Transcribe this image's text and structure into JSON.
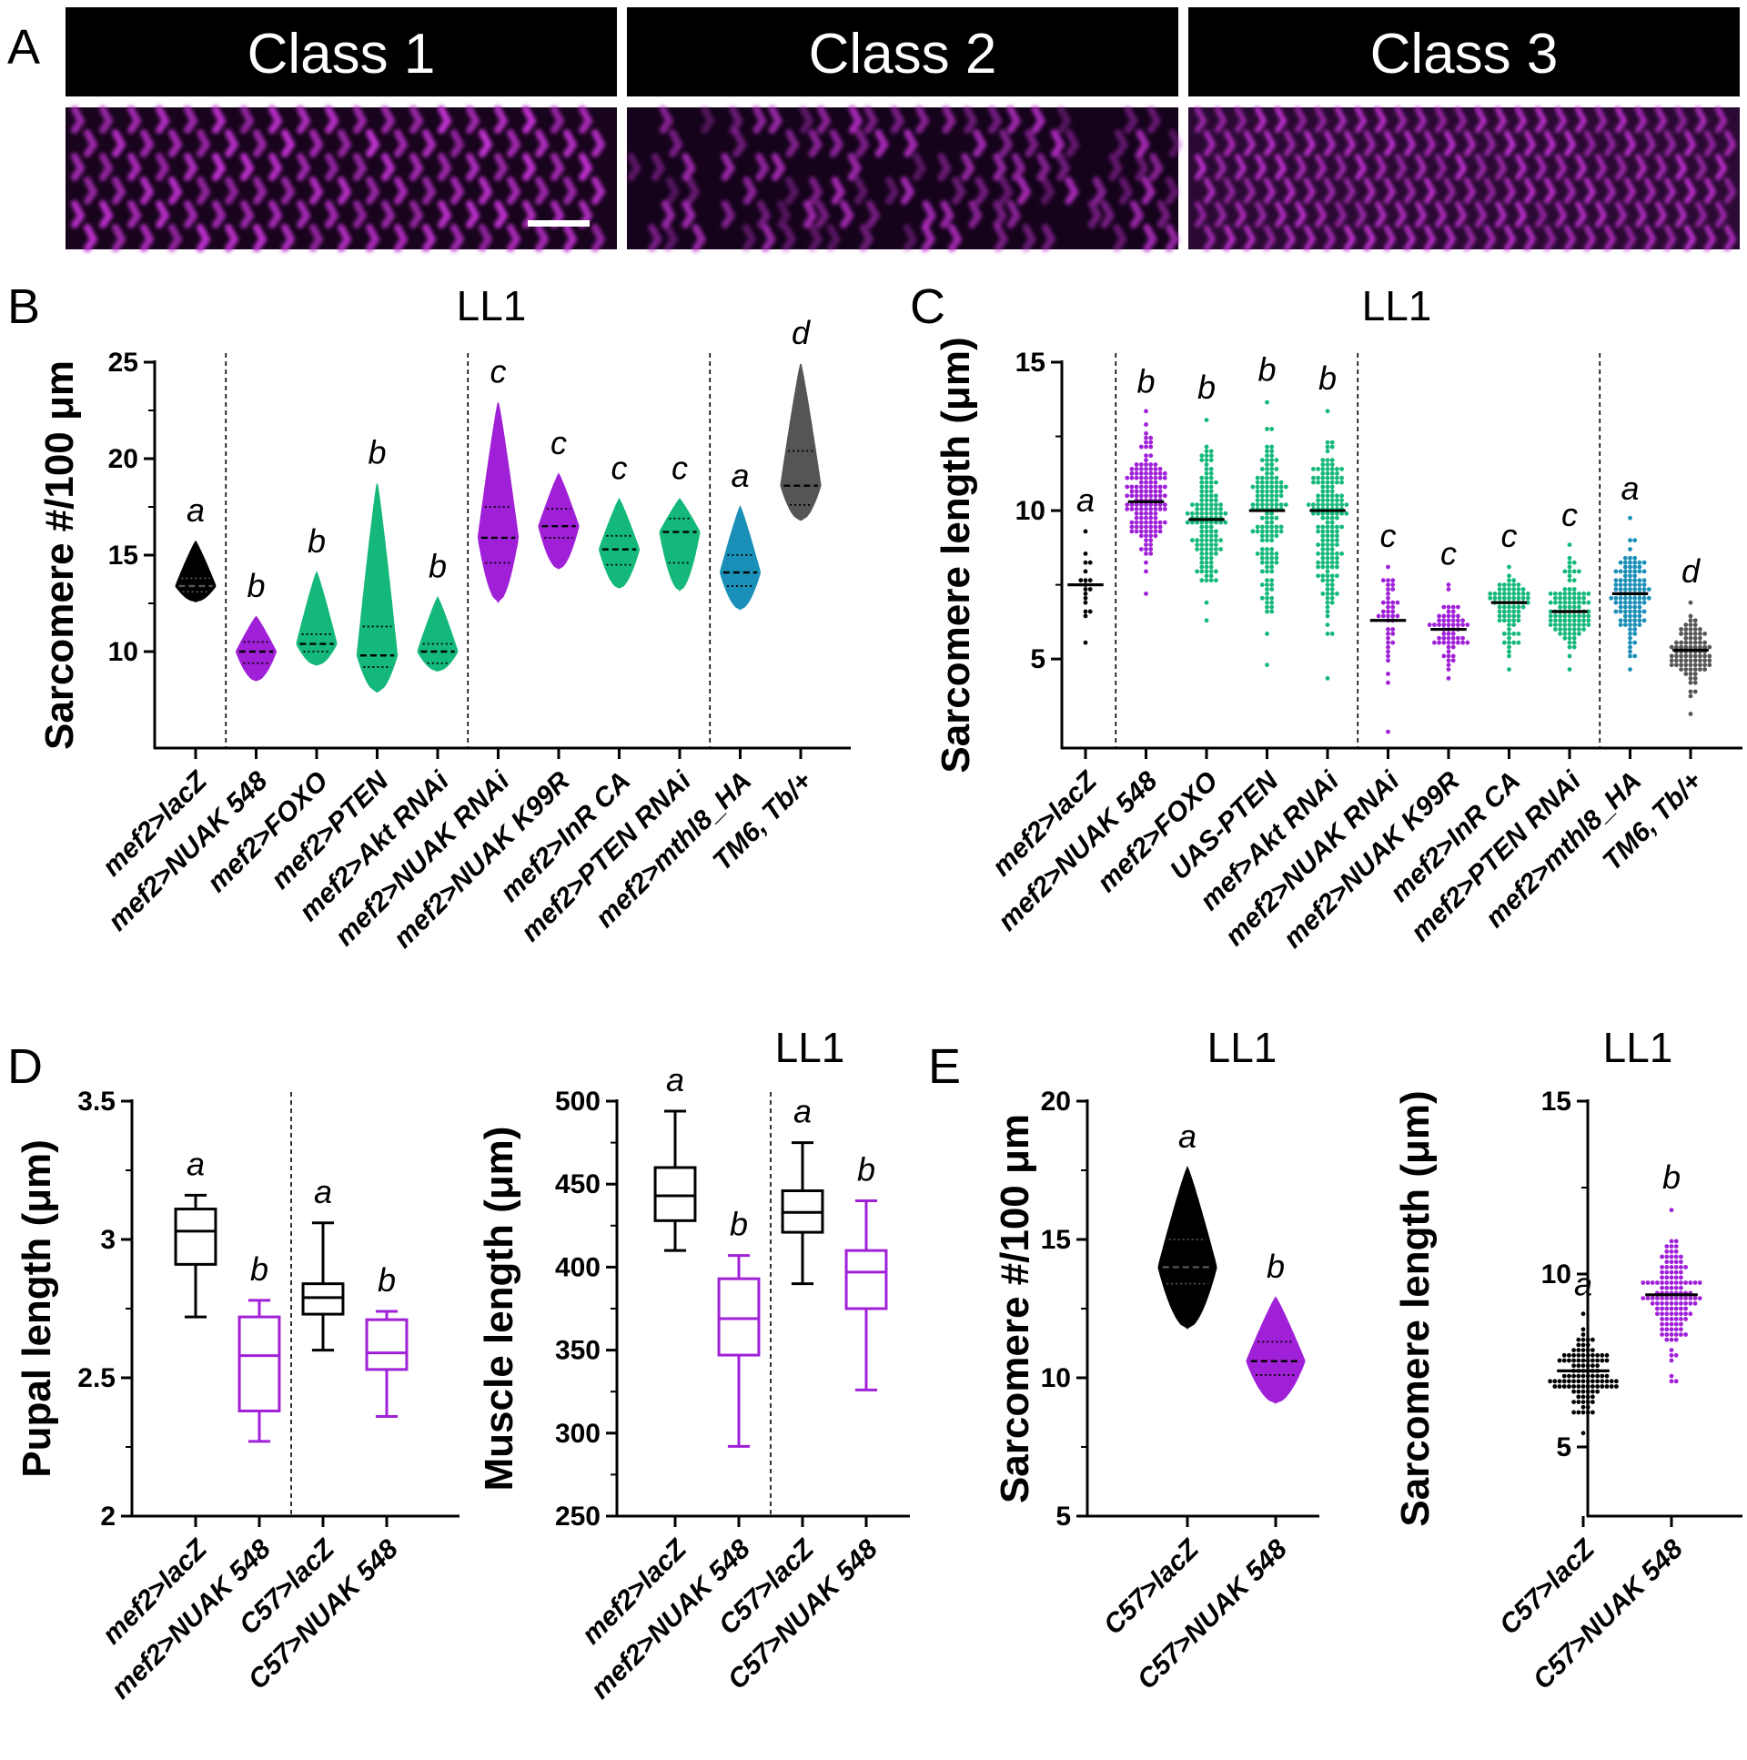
{
  "panels": {
    "A": "A",
    "B": "B",
    "C": "C",
    "D": "D",
    "E": "E"
  },
  "micrographs": [
    {
      "label": "Class 1",
      "pattern": "regular"
    },
    {
      "label": "Class 2",
      "pattern": "disorganized"
    },
    {
      "label": "Class 3",
      "pattern": "dense"
    }
  ],
  "colors": {
    "black": "#000000",
    "purple": "#a020d8",
    "green": "#14b87a",
    "teal": "#1a8fb8",
    "gray": "#555555",
    "micrograph": "#c030d0"
  },
  "chart_data": [
    {
      "id": "B",
      "type": "violin",
      "title": "LL1",
      "ylabel": "Sarcomere #/100 μm",
      "ylim": [
        5,
        25
      ],
      "yticks": [
        10,
        15,
        20,
        25
      ],
      "dividers_after": [
        0,
        4,
        8
      ],
      "categories": [
        "mef2>lacZ",
        "mef2>NUAK 548",
        "mef2>FOXO",
        "mef2>PTEN",
        "mef2>Akt RNAi",
        "mef2>NUAK RNAi",
        "mef2>NUAK K99R",
        "mef2>InR CA",
        "mef2>PTEN RNAi",
        "mef2>mthl8_HA",
        "TM6, Tb/+"
      ],
      "colors": [
        "black",
        "purple",
        "green",
        "green",
        "green",
        "purple",
        "purple",
        "green",
        "green",
        "teal",
        "gray"
      ],
      "letters": [
        "a",
        "b",
        "b",
        "b",
        "b",
        "c",
        "c",
        "c",
        "c",
        "a",
        "d"
      ],
      "distributions": [
        {
          "min": 12.6,
          "max": 15.7,
          "median": 13.4,
          "q1": 13.1,
          "q3": 13.8
        },
        {
          "min": 8.5,
          "max": 11.8,
          "median": 10.0,
          "q1": 9.4,
          "q3": 10.5
        },
        {
          "min": 9.3,
          "max": 14.1,
          "median": 10.4,
          "q1": 10.0,
          "q3": 10.9
        },
        {
          "min": 7.9,
          "max": 18.7,
          "median": 9.8,
          "q1": 9.2,
          "q3": 11.3
        },
        {
          "min": 9.0,
          "max": 12.8,
          "median": 10.0,
          "q1": 9.4,
          "q3": 10.4
        },
        {
          "min": 12.6,
          "max": 22.9,
          "median": 15.9,
          "q1": 14.6,
          "q3": 17.5
        },
        {
          "min": 14.3,
          "max": 19.2,
          "median": 16.5,
          "q1": 15.9,
          "q3": 17.4
        },
        {
          "min": 13.3,
          "max": 17.9,
          "median": 15.3,
          "q1": 14.5,
          "q3": 16.0
        },
        {
          "min": 13.2,
          "max": 17.9,
          "median": 16.2,
          "q1": 14.6,
          "q3": 16.9
        },
        {
          "min": 12.2,
          "max": 17.5,
          "median": 14.1,
          "q1": 13.4,
          "q3": 15.0
        },
        {
          "min": 16.8,
          "max": 24.9,
          "median": 18.6,
          "q1": 17.6,
          "q3": 20.4
        }
      ]
    },
    {
      "id": "C",
      "type": "scatter",
      "title": "LL1",
      "ylabel": "Sarcomere length (μm)",
      "ylim": [
        2,
        15
      ],
      "yticks": [
        5,
        10,
        15
      ],
      "dividers_after": [
        0,
        4,
        8
      ],
      "categories": [
        "mef2>lacZ",
        "mef2>NUAK 548",
        "mef2>FOXO",
        "UAS-PTEN",
        "mef>Akt RNAi",
        "mef2>NUAK RNAi",
        "mef2>NUAK K99R",
        "mef2>InR CA",
        "mef2>PTEN RNAi",
        "mef2>mthl8_HA",
        "TM6, Tb/+"
      ],
      "colors": [
        "black",
        "purple",
        "green",
        "green",
        "green",
        "purple",
        "purple",
        "green",
        "green",
        "teal",
        "gray"
      ],
      "letters": [
        "a",
        "b",
        "b",
        "b",
        "b",
        "c",
        "c",
        "c",
        "c",
        "a",
        "d"
      ],
      "distributions": [
        {
          "min": 5.6,
          "max": 9.3,
          "median": 7.5,
          "n": 18
        },
        {
          "min": 7.2,
          "max": 13.3,
          "median": 10.3,
          "n": 150
        },
        {
          "min": 6.3,
          "max": 13.1,
          "median": 9.7,
          "n": 130
        },
        {
          "min": 4.8,
          "max": 13.7,
          "median": 10.0,
          "n": 140
        },
        {
          "min": 4.4,
          "max": 13.4,
          "median": 10.0,
          "n": 160
        },
        {
          "min": 2.5,
          "max": 8.1,
          "median": 6.3,
          "n": 40
        },
        {
          "min": 4.4,
          "max": 7.5,
          "median": 6.0,
          "n": 60
        },
        {
          "min": 4.7,
          "max": 8.1,
          "median": 6.9,
          "n": 80
        },
        {
          "min": 4.7,
          "max": 8.8,
          "median": 6.6,
          "n": 110
        },
        {
          "min": 4.7,
          "max": 9.7,
          "median": 7.2,
          "n": 110
        },
        {
          "min": 3.1,
          "max": 6.9,
          "median": 5.3,
          "n": 90
        }
      ]
    },
    {
      "id": "D1",
      "type": "box",
      "title": "",
      "ylabel": "Pupal length (μm)",
      "ylim": [
        2.0,
        3.5
      ],
      "yticks": [
        2.0,
        2.5,
        3.0,
        3.5
      ],
      "dividers_after": [
        1
      ],
      "categories": [
        "mef2>lacZ",
        "mef2>NUAK 548",
        "C57>lacZ",
        "C57>NUAK 548"
      ],
      "colors": [
        "black",
        "purple",
        "black",
        "purple"
      ],
      "letters": [
        "a",
        "b",
        "a",
        "b"
      ],
      "boxes": [
        {
          "min": 2.72,
          "q1": 2.91,
          "median": 3.03,
          "q3": 3.11,
          "max": 3.16
        },
        {
          "min": 2.27,
          "q1": 2.38,
          "median": 2.58,
          "q3": 2.72,
          "max": 2.78
        },
        {
          "min": 2.6,
          "q1": 2.73,
          "median": 2.79,
          "q3": 2.84,
          "max": 3.06
        },
        {
          "min": 2.36,
          "q1": 2.53,
          "median": 2.59,
          "q3": 2.71,
          "max": 2.74
        }
      ]
    },
    {
      "id": "D2",
      "type": "box",
      "title": "LL1",
      "ylabel": "Muscle length (μm)",
      "ylim": [
        250,
        500
      ],
      "yticks": [
        250,
        300,
        350,
        400,
        450,
        500
      ],
      "dividers_after": [
        1
      ],
      "categories": [
        "mef2>lacZ",
        "mef2>NUAK 548",
        "C57>lacZ",
        "C57>NUAK 548"
      ],
      "colors": [
        "black",
        "purple",
        "black",
        "purple"
      ],
      "letters": [
        "a",
        "b",
        "a",
        "b"
      ],
      "boxes": [
        {
          "min": 410,
          "q1": 428,
          "median": 443,
          "q3": 460,
          "max": 494
        },
        {
          "min": 292,
          "q1": 347,
          "median": 369,
          "q3": 393,
          "max": 407
        },
        {
          "min": 390,
          "q1": 421,
          "median": 433,
          "q3": 446,
          "max": 475
        },
        {
          "min": 326,
          "q1": 375,
          "median": 397,
          "q3": 410,
          "max": 440
        }
      ]
    },
    {
      "id": "E1",
      "type": "violin",
      "title": "LL1",
      "ylabel": "Sarcomere #/100 μm",
      "ylim": [
        5,
        20
      ],
      "yticks": [
        5,
        10,
        15,
        20
      ],
      "dividers_after": [],
      "categories": [
        "C57>lacZ",
        "C57>NUAK 548"
      ],
      "colors": [
        "black",
        "purple"
      ],
      "letters": [
        "a",
        "b"
      ],
      "distributions": [
        {
          "min": 11.8,
          "max": 17.6,
          "median": 14.0,
          "q1": 13.4,
          "q3": 15.0
        },
        {
          "min": 9.1,
          "max": 12.9,
          "median": 10.6,
          "q1": 10.1,
          "q3": 11.3
        }
      ]
    },
    {
      "id": "E2",
      "type": "scatter",
      "title": "LL1",
      "ylabel": "Sarcomere length (μm)",
      "ylim": [
        3,
        15
      ],
      "yticks": [
        5,
        10,
        15
      ],
      "dividers_after": [],
      "categories": [
        "C57>lacZ",
        "C57>NUAK 548"
      ],
      "colors": [
        "black",
        "purple"
      ],
      "letters": [
        "a",
        "b"
      ],
      "distributions": [
        {
          "min": 5.4,
          "max": 8.8,
          "median": 7.2,
          "n": 110
        },
        {
          "min": 6.9,
          "max": 11.9,
          "median": 9.4,
          "n": 130
        }
      ]
    }
  ]
}
